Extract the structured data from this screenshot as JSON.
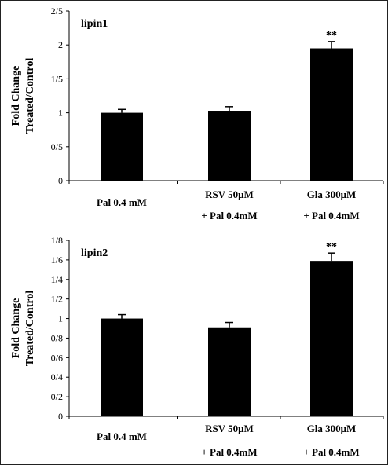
{
  "chart_data": [
    {
      "type": "bar",
      "title": "lipin1",
      "ylabel_line1": "Fold Change",
      "ylabel_line2": "Treated/Control",
      "categories": [
        {
          "line1": "Pal 0.4 mM",
          "line2": ""
        },
        {
          "line1": "RSV 50μM",
          "line2": "+ Pal 0.4mM"
        },
        {
          "line1": "Gla 300μM",
          "line2": "+ Pal 0.4mM"
        }
      ],
      "values": [
        1.0,
        1.03,
        1.95
      ],
      "errors": [
        0.05,
        0.06,
        0.1
      ],
      "significance": [
        "",
        "",
        "**"
      ],
      "ylim": [
        0,
        2.5
      ],
      "ytick_values": [
        0,
        0.5,
        1,
        1.5,
        2,
        2.5
      ],
      "ytick_labels": [
        "0",
        "0/5",
        "1",
        "1/5",
        "2",
        "2/5"
      ],
      "bar_color": "#000000",
      "grid": false
    },
    {
      "type": "bar",
      "title": "lipin2",
      "ylabel_line1": "Fold Change",
      "ylabel_line2": "Treated/Control",
      "categories": [
        {
          "line1": "Pal 0.4 mM",
          "line2": ""
        },
        {
          "line1": "RSV 50μM",
          "line2": "+ Pal 0.4mM"
        },
        {
          "line1": "Gla 300μM",
          "line2": "+ Pal 0.4mM"
        }
      ],
      "values": [
        1.0,
        0.91,
        1.59
      ],
      "errors": [
        0.04,
        0.05,
        0.08
      ],
      "significance": [
        "",
        "",
        "**"
      ],
      "ylim": [
        0,
        1.8
      ],
      "ytick_values": [
        0,
        0.2,
        0.4,
        0.6,
        0.8,
        1,
        1.2,
        1.4,
        1.6,
        1.8
      ],
      "ytick_labels": [
        "0",
        "0/2",
        "0/4",
        "0/6",
        "0/8",
        "1",
        "1/2",
        "1/4",
        "1/6",
        "1/8"
      ],
      "bar_color": "#000000",
      "grid": false
    }
  ]
}
